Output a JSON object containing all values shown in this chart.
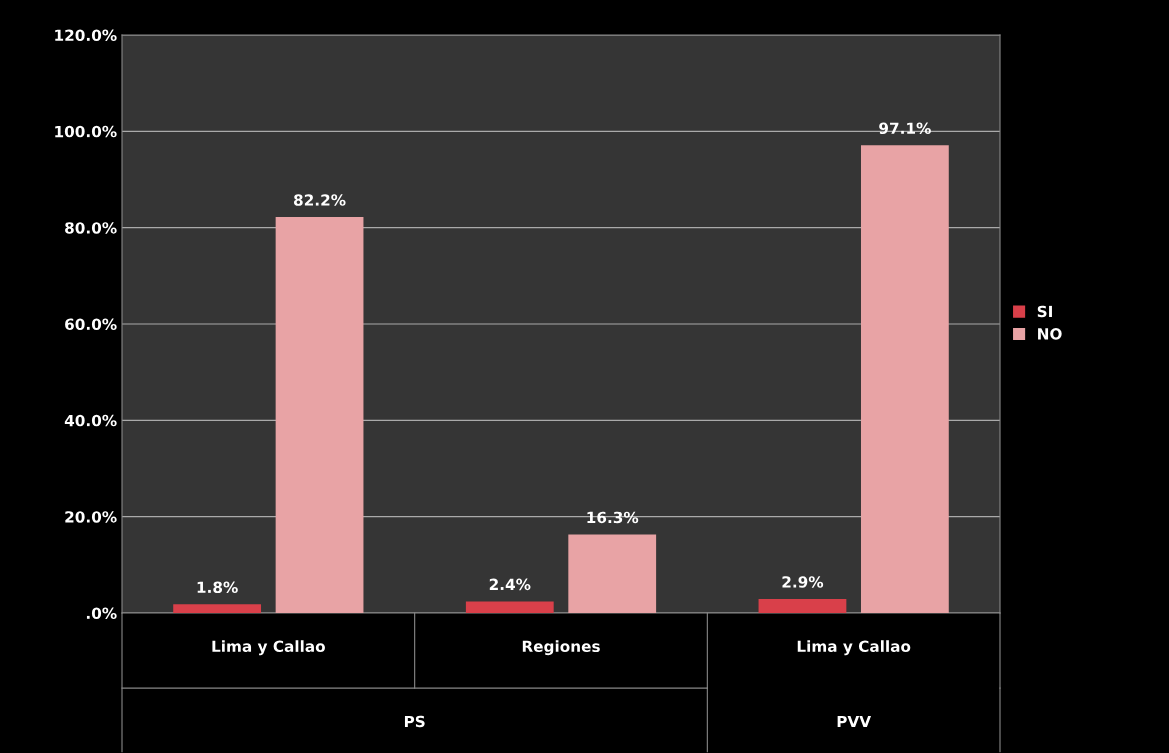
{
  "chart_data": {
    "type": "bar",
    "categories": [
      "Lima y Callao",
      "Regiones",
      "Lima y Callao"
    ],
    "annotations": [
      "PS",
      "PVV"
    ],
    "series": [
      {
        "name": "SI",
        "color": "#d9404a",
        "values": [
          1.8,
          2.4,
          2.9
        ],
        "value_labels": [
          "1.8%",
          "2.4%",
          "2.9%"
        ]
      },
      {
        "name": "NO",
        "color": "#e8a3a5",
        "values": [
          82.2,
          16.3,
          97.1
        ],
        "value_labels": [
          "82.2%",
          "16.3%",
          "97.1%"
        ]
      }
    ],
    "ylim": [
      0,
      120
    ],
    "yticks": [
      {
        "value": 0,
        "label": ".0%"
      },
      {
        "value": 20,
        "label": "20.0%"
      },
      {
        "value": 40,
        "label": "40.0%"
      },
      {
        "value": 60,
        "label": "60.0%"
      },
      {
        "value": 80,
        "label": "80.0%"
      },
      {
        "value": 100,
        "label": "100.0%"
      },
      {
        "value": 120,
        "label": "120.0%"
      }
    ],
    "grid": "y",
    "legend": "right"
  }
}
